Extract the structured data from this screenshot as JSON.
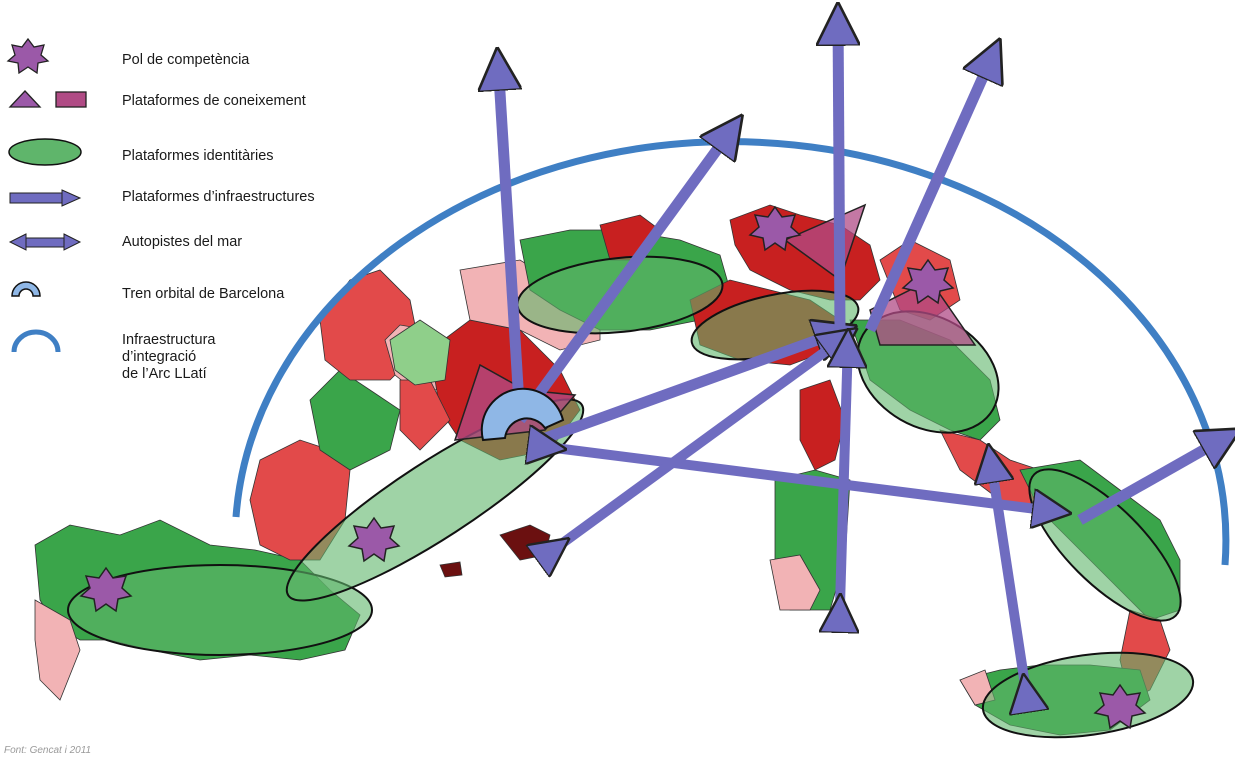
{
  "legend": {
    "items": [
      {
        "symbol": "star-icon",
        "label": "Pol de competència"
      },
      {
        "symbol": "triangle-rectangle-icon",
        "label": "Plataformes de coneixement"
      },
      {
        "symbol": "ellipse-icon",
        "label": "Plataformes identitàries"
      },
      {
        "symbol": "arrow-right-icon",
        "label": "Plataformes d’infraestructures"
      },
      {
        "symbol": "double-arrow-icon",
        "label": "Autopistes del mar"
      },
      {
        "symbol": "small-arc-icon",
        "label": "Tren orbital de Barcelona"
      },
      {
        "symbol": "large-arc-icon",
        "label": "Infraestructura\nd’integració\nde l’Arc LLatí"
      }
    ]
  },
  "source": "Font: Gencat i 2011",
  "colors": {
    "pole": "#9b59a8",
    "knowledge": "#b04b85",
    "identity": "#5fb56b",
    "infra_arrow": "#6f6cc0",
    "arc": "#3f7fc4",
    "region_dark_red": "#c82020",
    "region_red": "#e24a4a",
    "region_pink": "#f2b3b5",
    "region_green": "#3aa54a",
    "region_light_green": "#8fcf8a",
    "region_dark": "#6b1010"
  }
}
